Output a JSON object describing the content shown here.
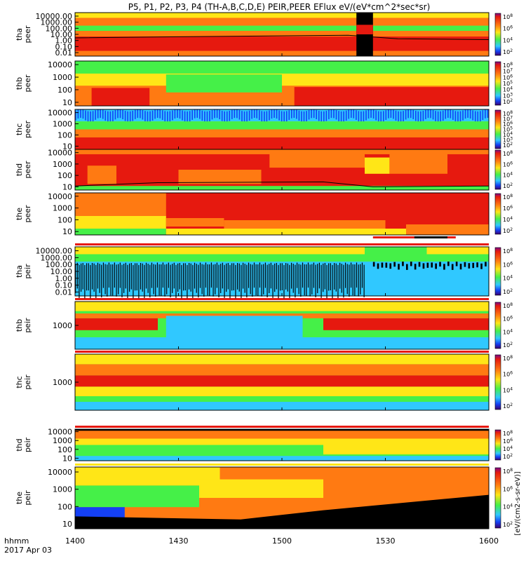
{
  "chart_data": {
    "type": "heatmap",
    "title": "P5, P1, P2, P3, P4 (TH-A,B,C,D,E) PEIR,PEER EFlux eV/(eV*cm^2*sec*sr)",
    "time_axis": {
      "label_line1": "hhmm",
      "label_line2": "2017 Apr 03",
      "ticks": [
        "1400",
        "1430",
        "1500",
        "1530",
        "1600"
      ],
      "range_minutes": [
        0,
        120
      ]
    },
    "colorbar_label": "[eV/(cm2-s-sr-eV)]",
    "colors": {
      "black": "#000000",
      "red": "#e6190f",
      "orange": "#ff7a12",
      "yellow": "#ffe617",
      "green": "#45f048",
      "cyan": "#30c8ff",
      "blue": "#1440f5"
    },
    "panels": [
      {
        "probe": "tha",
        "species": "peer",
        "yticks": [
          "10000.00",
          "1000.00",
          "100.00",
          "10.00",
          "1.00",
          "0.10",
          "0.01"
        ],
        "cticks": [
          "10^8",
          "10^6",
          "10^4",
          "10^2"
        ]
      },
      {
        "probe": "thb",
        "species": "peer",
        "yticks": [
          "10000",
          "1000",
          "100",
          "10"
        ],
        "cticks": [
          "10^8",
          "10^7",
          "10^6",
          "10^5",
          "10^4",
          "10^3",
          "10^2"
        ]
      },
      {
        "probe": "thc",
        "species": "peer",
        "yticks": [
          "10000",
          "1000",
          "100",
          "10"
        ],
        "cticks": [
          "10^8",
          "10^7",
          "10^6",
          "10^5",
          "10^4",
          "10^3",
          "10^2"
        ]
      },
      {
        "probe": "thd",
        "species": "peer",
        "yticks": [
          "10000",
          "1000",
          "100",
          "10"
        ],
        "cticks": [
          "10^8",
          "10^6",
          "10^4",
          "10^2"
        ]
      },
      {
        "probe": "the",
        "species": "peer",
        "yticks": [
          "10000",
          "1000",
          "100",
          "10"
        ],
        "cticks": [
          "10^8",
          "10^6",
          "10^4",
          "10^2"
        ]
      },
      {
        "probe": "tha",
        "species": "peir",
        "yticks": [
          "10000.00",
          "1000.00",
          "100.00",
          "10.00",
          "1.00",
          "0.10",
          "0.01"
        ],
        "cticks": [
          "10^8",
          "10^6",
          "10^4",
          "10^2"
        ]
      },
      {
        "probe": "thb",
        "species": "peir",
        "yticks": [
          "1000"
        ],
        "cticks": [
          "10^8",
          "10^6",
          "10^4",
          "10^2"
        ]
      },
      {
        "probe": "thc",
        "species": "peir",
        "yticks": [
          "1000"
        ],
        "cticks": [
          "10^8",
          "10^6",
          "10^4",
          "10^2"
        ]
      },
      {
        "probe": "thd",
        "species": "peir",
        "yticks": [
          "10000",
          "1000",
          "100",
          "10"
        ],
        "cticks": [
          "10^8",
          "10^6",
          "10^4",
          "10^2"
        ]
      },
      {
        "probe": "the",
        "species": "peir",
        "yticks": [
          "10000",
          "1000",
          "100",
          "10"
        ],
        "cticks": [
          "10^8",
          "10^6",
          "10^4",
          "10^2"
        ]
      }
    ]
  }
}
